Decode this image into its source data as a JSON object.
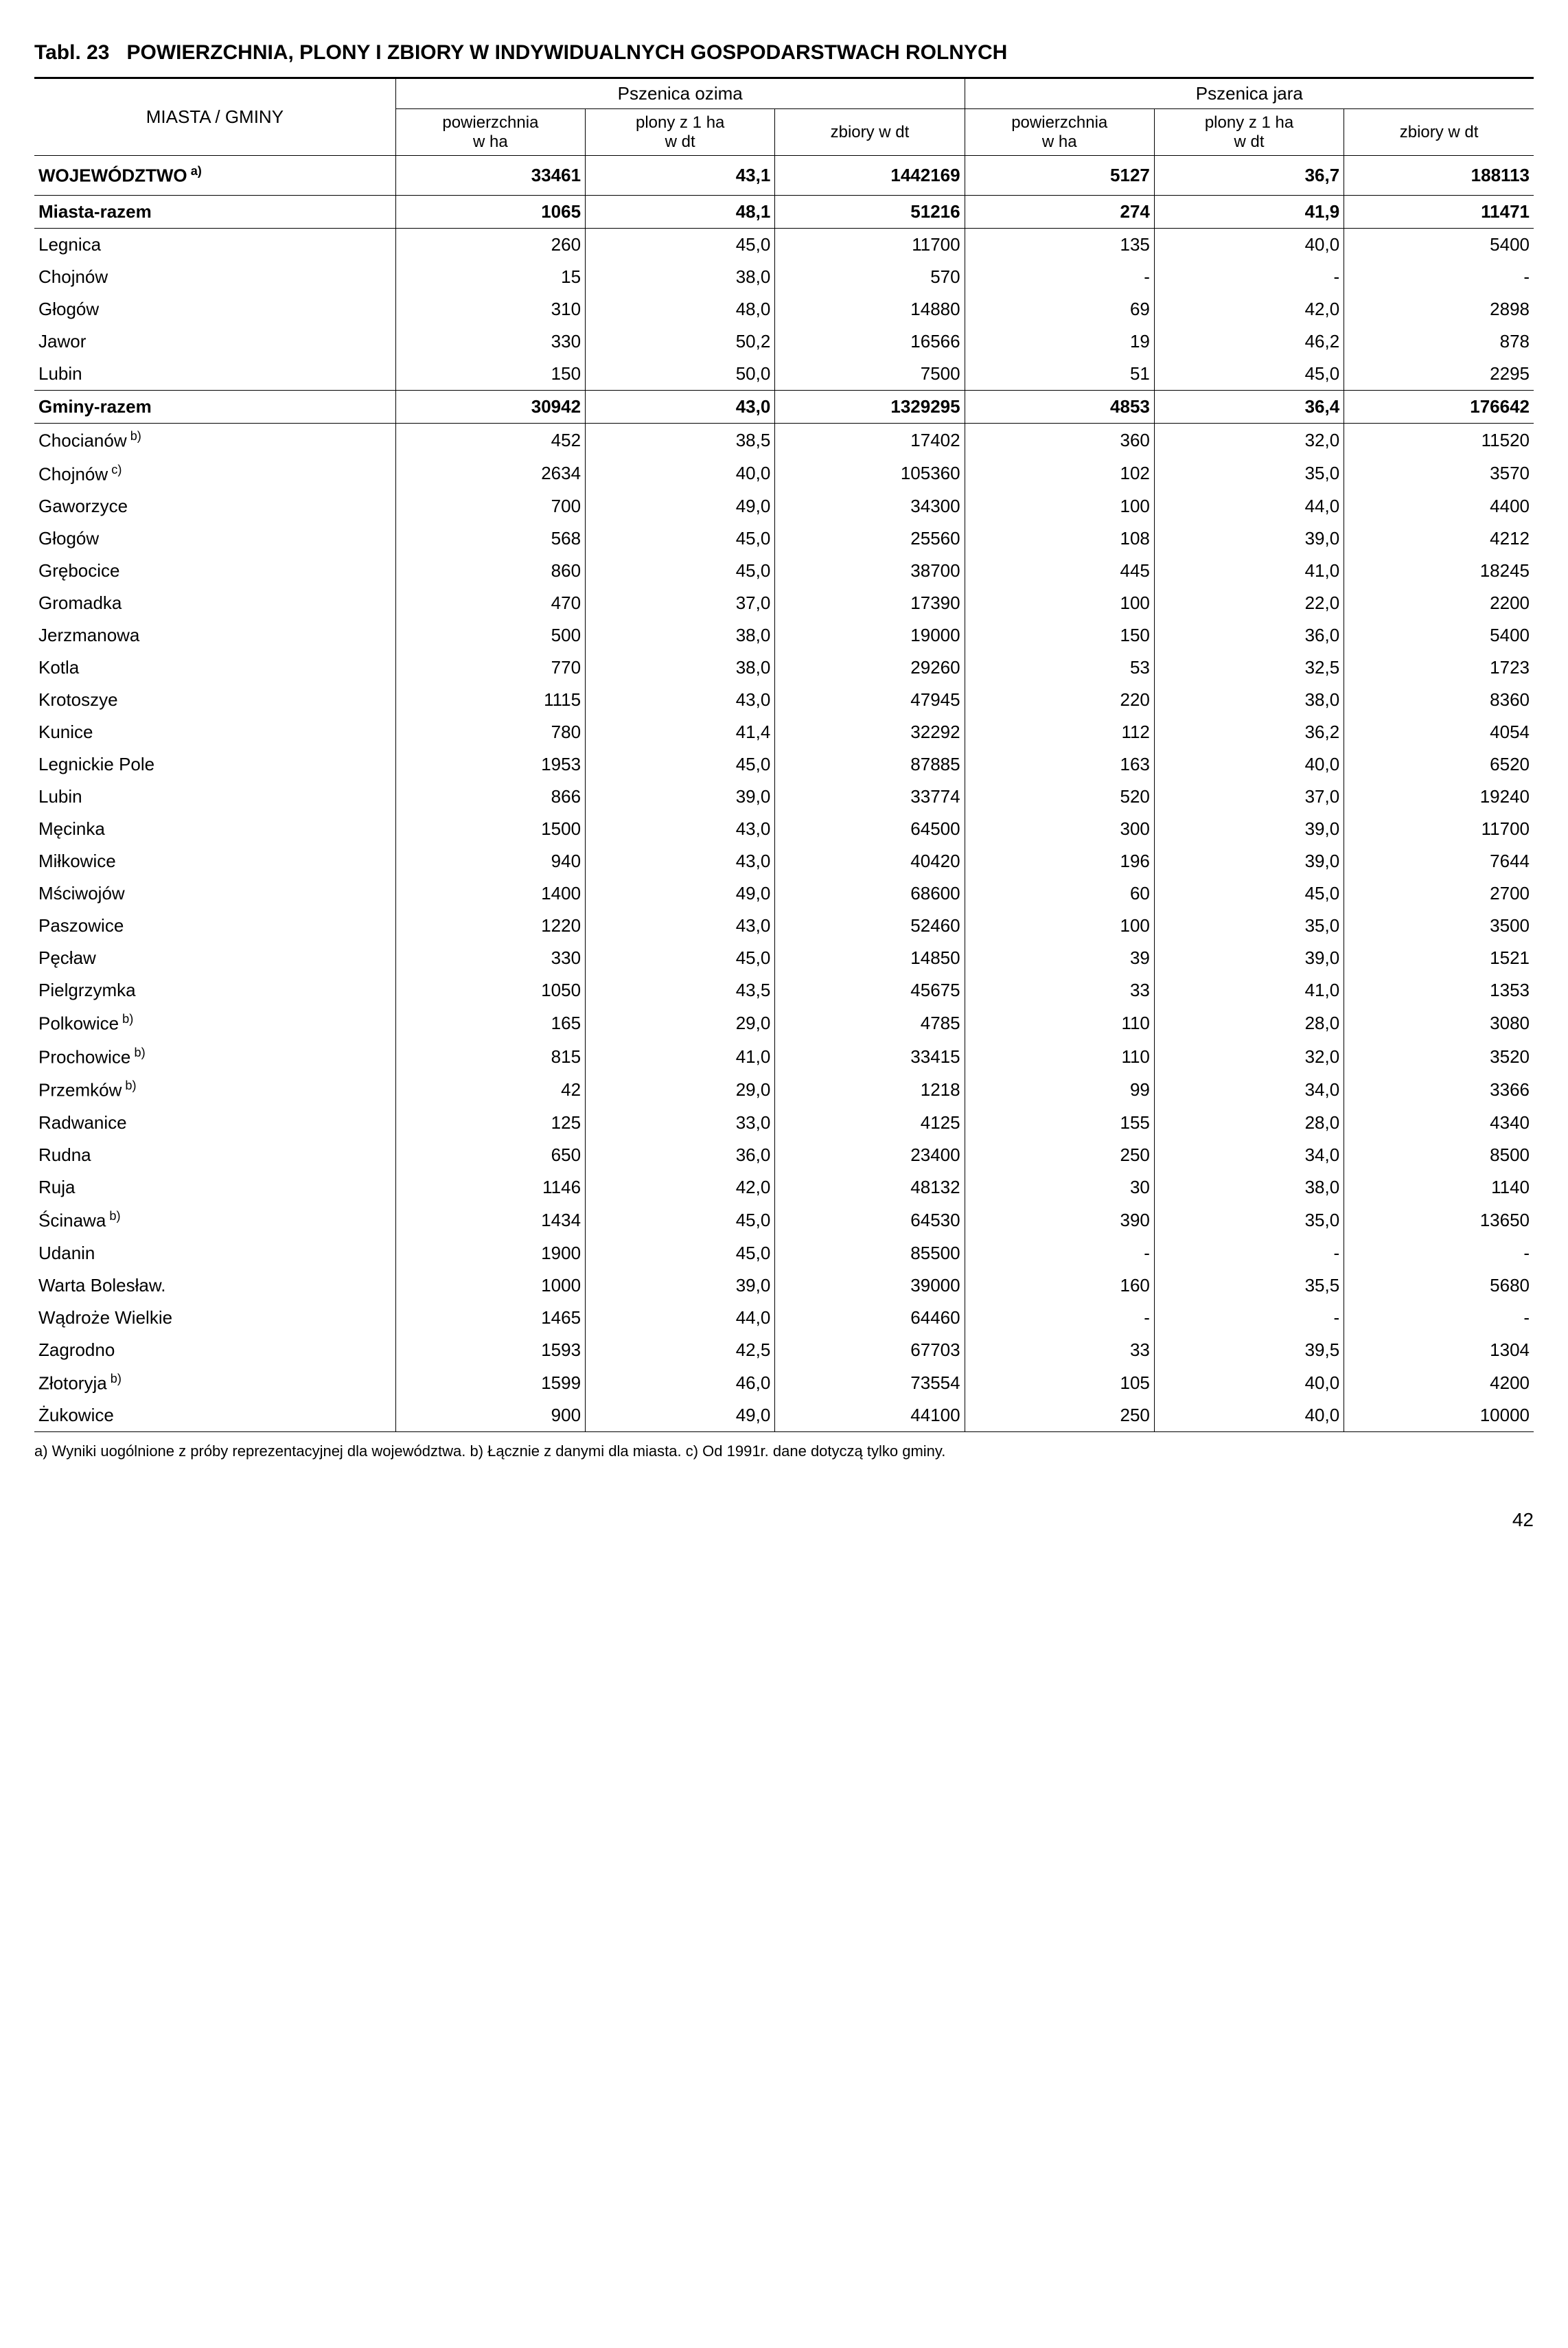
{
  "title_prefix": "Tabl. 23",
  "title_rest": "POWIERZCHNIA, PLONY I ZBIORY W INDYWIDUALNYCH GOSPODARSTWACH ROLNYCH",
  "row_header": "MIASTA / GMINY",
  "group_left": "Pszenica ozima",
  "group_right": "Pszenica jara",
  "sub_headers": {
    "pow": "powierzchnia\nw ha",
    "plony": "plony z 1 ha\nw dt",
    "zbiory": "zbiory w dt"
  },
  "woj_row": {
    "label": "WOJEWÓDZTWO",
    "sup": "a)",
    "c1": "33461",
    "c2": "43,1",
    "c3": "1442169",
    "c4": "5127",
    "c5": "36,7",
    "c6": "188113"
  },
  "miasta_row": {
    "label": "Miasta-razem",
    "c1": "1065",
    "c2": "48,1",
    "c3": "51216",
    "c4": "274",
    "c5": "41,9",
    "c6": "11471"
  },
  "miasta": [
    {
      "label": "Legnica",
      "c1": "260",
      "c2": "45,0",
      "c3": "11700",
      "c4": "135",
      "c5": "40,0",
      "c6": "5400"
    },
    {
      "label": "Chojnów",
      "c1": "15",
      "c2": "38,0",
      "c3": "570",
      "c4": "-",
      "c5": "-",
      "c6": "-"
    },
    {
      "label": "Głogów",
      "c1": "310",
      "c2": "48,0",
      "c3": "14880",
      "c4": "69",
      "c5": "42,0",
      "c6": "2898"
    },
    {
      "label": "Jawor",
      "c1": "330",
      "c2": "50,2",
      "c3": "16566",
      "c4": "19",
      "c5": "46,2",
      "c6": "878"
    },
    {
      "label": "Lubin",
      "c1": "150",
      "c2": "50,0",
      "c3": "7500",
      "c4": "51",
      "c5": "45,0",
      "c6": "2295"
    }
  ],
  "gminy_row": {
    "label": "Gminy-razem",
    "c1": "30942",
    "c2": "43,0",
    "c3": "1329295",
    "c4": "4853",
    "c5": "36,4",
    "c6": "176642"
  },
  "gminy": [
    {
      "label": "Chocianów",
      "sup": "b)",
      "c1": "452",
      "c2": "38,5",
      "c3": "17402",
      "c4": "360",
      "c5": "32,0",
      "c6": "11520"
    },
    {
      "label": "Chojnów",
      "sup": "c)",
      "c1": "2634",
      "c2": "40,0",
      "c3": "105360",
      "c4": "102",
      "c5": "35,0",
      "c6": "3570"
    },
    {
      "label": "Gaworzyce",
      "c1": "700",
      "c2": "49,0",
      "c3": "34300",
      "c4": "100",
      "c5": "44,0",
      "c6": "4400"
    },
    {
      "label": "Głogów",
      "c1": "568",
      "c2": "45,0",
      "c3": "25560",
      "c4": "108",
      "c5": "39,0",
      "c6": "4212"
    },
    {
      "label": "Grębocice",
      "c1": "860",
      "c2": "45,0",
      "c3": "38700",
      "c4": "445",
      "c5": "41,0",
      "c6": "18245"
    },
    {
      "label": "Gromadka",
      "c1": "470",
      "c2": "37,0",
      "c3": "17390",
      "c4": "100",
      "c5": "22,0",
      "c6": "2200"
    },
    {
      "label": "Jerzmanowa",
      "c1": "500",
      "c2": "38,0",
      "c3": "19000",
      "c4": "150",
      "c5": "36,0",
      "c6": "5400"
    },
    {
      "label": "Kotla",
      "c1": "770",
      "c2": "38,0",
      "c3": "29260",
      "c4": "53",
      "c5": "32,5",
      "c6": "1723"
    },
    {
      "label": "Krotoszye",
      "c1": "1115",
      "c2": "43,0",
      "c3": "47945",
      "c4": "220",
      "c5": "38,0",
      "c6": "8360"
    },
    {
      "label": "Kunice",
      "c1": "780",
      "c2": "41,4",
      "c3": "32292",
      "c4": "112",
      "c5": "36,2",
      "c6": "4054"
    },
    {
      "label": "Legnickie Pole",
      "c1": "1953",
      "c2": "45,0",
      "c3": "87885",
      "c4": "163",
      "c5": "40,0",
      "c6": "6520"
    },
    {
      "label": "Lubin",
      "c1": "866",
      "c2": "39,0",
      "c3": "33774",
      "c4": "520",
      "c5": "37,0",
      "c6": "19240"
    },
    {
      "label": "Męcinka",
      "c1": "1500",
      "c2": "43,0",
      "c3": "64500",
      "c4": "300",
      "c5": "39,0",
      "c6": "11700"
    },
    {
      "label": "Miłkowice",
      "c1": "940",
      "c2": "43,0",
      "c3": "40420",
      "c4": "196",
      "c5": "39,0",
      "c6": "7644"
    },
    {
      "label": "Mściwojów",
      "c1": "1400",
      "c2": "49,0",
      "c3": "68600",
      "c4": "60",
      "c5": "45,0",
      "c6": "2700"
    },
    {
      "label": "Paszowice",
      "c1": "1220",
      "c2": "43,0",
      "c3": "52460",
      "c4": "100",
      "c5": "35,0",
      "c6": "3500"
    },
    {
      "label": "Pęcław",
      "c1": "330",
      "c2": "45,0",
      "c3": "14850",
      "c4": "39",
      "c5": "39,0",
      "c6": "1521"
    },
    {
      "label": "Pielgrzymka",
      "c1": "1050",
      "c2": "43,5",
      "c3": "45675",
      "c4": "33",
      "c5": "41,0",
      "c6": "1353"
    },
    {
      "label": "Polkowice",
      "sup": "b)",
      "c1": "165",
      "c2": "29,0",
      "c3": "4785",
      "c4": "110",
      "c5": "28,0",
      "c6": "3080"
    },
    {
      "label": "Prochowice",
      "sup": "b)",
      "c1": "815",
      "c2": "41,0",
      "c3": "33415",
      "c4": "110",
      "c5": "32,0",
      "c6": "3520"
    },
    {
      "label": "Przemków",
      "sup": "b)",
      "c1": "42",
      "c2": "29,0",
      "c3": "1218",
      "c4": "99",
      "c5": "34,0",
      "c6": "3366"
    },
    {
      "label": "Radwanice",
      "c1": "125",
      "c2": "33,0",
      "c3": "4125",
      "c4": "155",
      "c5": "28,0",
      "c6": "4340"
    },
    {
      "label": "Rudna",
      "c1": "650",
      "c2": "36,0",
      "c3": "23400",
      "c4": "250",
      "c5": "34,0",
      "c6": "8500"
    },
    {
      "label": "Ruja",
      "c1": "1146",
      "c2": "42,0",
      "c3": "48132",
      "c4": "30",
      "c5": "38,0",
      "c6": "1140"
    },
    {
      "label": "Ścinawa",
      "sup": "b)",
      "c1": "1434",
      "c2": "45,0",
      "c3": "64530",
      "c4": "390",
      "c5": "35,0",
      "c6": "13650"
    },
    {
      "label": "Udanin",
      "c1": "1900",
      "c2": "45,0",
      "c3": "85500",
      "c4": "-",
      "c5": "-",
      "c6": "-"
    },
    {
      "label": "Warta Bolesław.",
      "c1": "1000",
      "c2": "39,0",
      "c3": "39000",
      "c4": "160",
      "c5": "35,5",
      "c6": "5680"
    },
    {
      "label": "Wądroże Wielkie",
      "c1": "1465",
      "c2": "44,0",
      "c3": "64460",
      "c4": "-",
      "c5": "-",
      "c6": "-"
    },
    {
      "label": "Zagrodno",
      "c1": "1593",
      "c2": "42,5",
      "c3": "67703",
      "c4": "33",
      "c5": "39,5",
      "c6": "1304"
    },
    {
      "label": "Złotoryja",
      "sup": "b)",
      "c1": "1599",
      "c2": "46,0",
      "c3": "73554",
      "c4": "105",
      "c5": "40,0",
      "c6": "4200"
    },
    {
      "label": "Żukowice",
      "c1": "900",
      "c2": "49,0",
      "c3": "44100",
      "c4": "250",
      "c5": "40,0",
      "c6": "10000"
    }
  ],
  "footnote": "a) Wyniki uogólnione z próby reprezentacyjnej dla województwa. b) Łącznie z danymi dla miasta. c) Od 1991r. dane dotyczą tylko gminy.",
  "page_number": "42",
  "table_style": {
    "type": "table",
    "columns": [
      "label",
      "c1",
      "c2",
      "c3",
      "c4",
      "c5",
      "c6"
    ],
    "col_align": [
      "left",
      "right",
      "right",
      "right",
      "right",
      "right",
      "right"
    ],
    "border_color": "#000000",
    "background_color": "#ffffff",
    "text_color": "#000000",
    "font_size_body": 26,
    "font_size_header": 24,
    "title_fontsize": 30,
    "col_widths_percent": [
      24,
      12.6,
      12.6,
      12.6,
      12.6,
      12.6,
      12.6
    ]
  }
}
